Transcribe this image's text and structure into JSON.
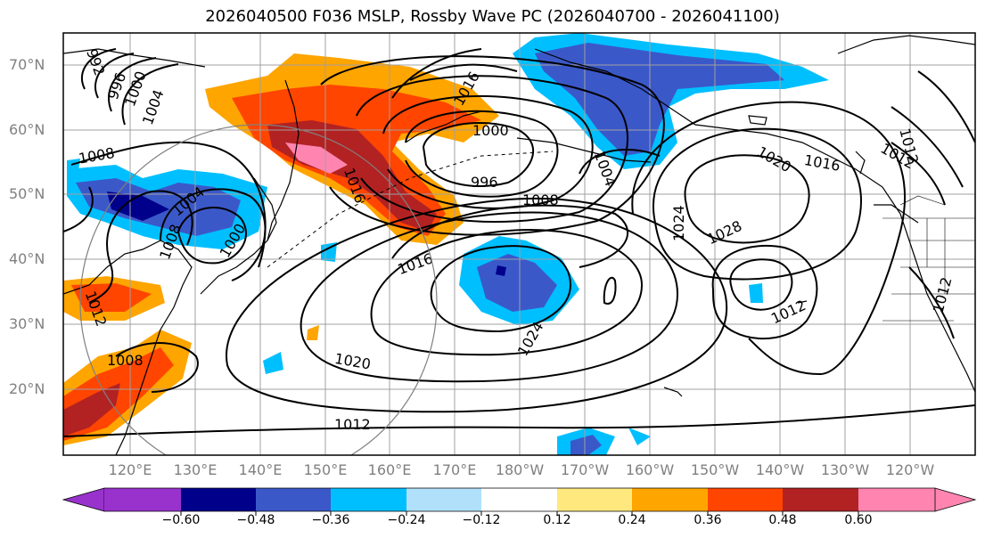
{
  "title": "2026040500 F036 MSLP, Rossby Wave PC (2026040700 - 2026041100)",
  "lat_labels": [
    "70°N",
    "60°N",
    "50°N",
    "40°N",
    "30°N",
    "20°N"
  ],
  "lon_labels": [
    "120°E",
    "130°E",
    "140°E",
    "150°E",
    "160°E",
    "170°E",
    "180°W",
    "170°W",
    "160°W",
    "150°W",
    "140°W",
    "130°W",
    "120°W"
  ],
  "isobar_labels": [
    "992",
    "996",
    "1000",
    "1004",
    "1008",
    "1012",
    "1016",
    "1020",
    "1024",
    "1028"
  ],
  "colorbar": {
    "ticks": [
      "−0.60",
      "−0.48",
      "−0.36",
      "−0.24",
      "−0.12",
      "0.12",
      "0.24",
      "0.36",
      "0.48",
      "0.60"
    ],
    "colors": [
      "#9932cc",
      "#00008b",
      "#3b58c9",
      "#00bfff",
      "#b0e0fa",
      "#ffffff",
      "#ffe97f",
      "#ffa500",
      "#ff4500",
      "#b22222",
      "#ff85b0"
    ]
  }
}
